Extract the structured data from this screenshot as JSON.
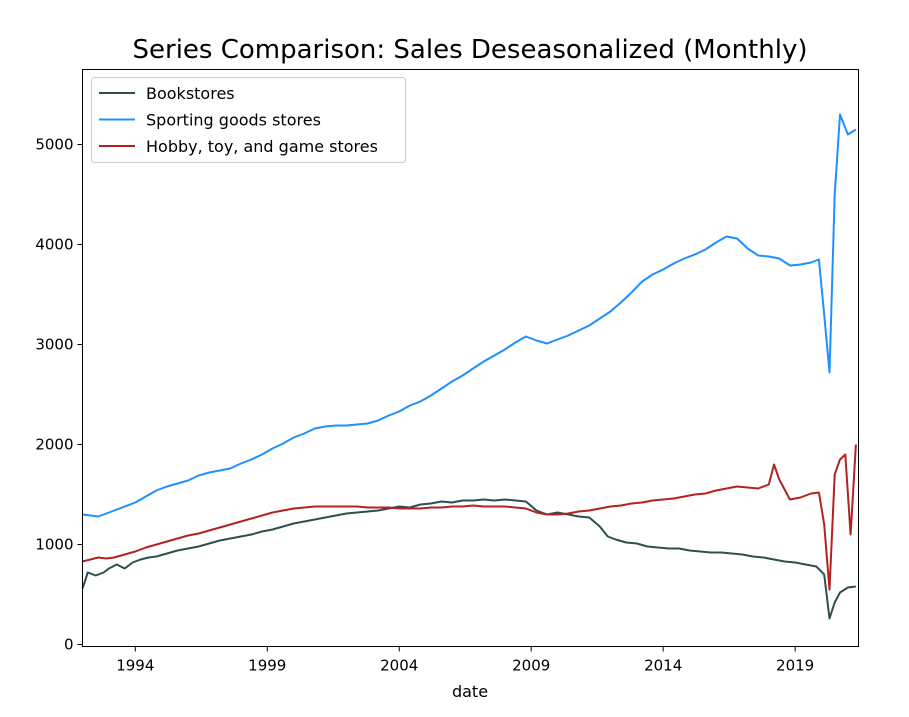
{
  "chart_data": {
    "type": "line",
    "title": "Series Comparison: Sales Deseasonalized (Monthly)",
    "xlabel": "date",
    "ylabel": "",
    "xlim": [
      1992.0,
      2021.4
    ],
    "ylim": [
      -20,
      5750
    ],
    "x_ticks": [
      1994,
      1999,
      2004,
      2009,
      2014,
      2019
    ],
    "y_ticks": [
      0,
      1000,
      2000,
      3000,
      4000,
      5000
    ],
    "legend_position": "upper-left",
    "grid": false,
    "series": [
      {
        "name": "Bookstores",
        "color": "#2f4f4f",
        "points": [
          [
            1992.0,
            560
          ],
          [
            1992.2,
            720
          ],
          [
            1992.5,
            690
          ],
          [
            1992.8,
            720
          ],
          [
            1993.0,
            760
          ],
          [
            1993.3,
            800
          ],
          [
            1993.6,
            760
          ],
          [
            1993.9,
            820
          ],
          [
            1994.2,
            850
          ],
          [
            1994.5,
            870
          ],
          [
            1994.8,
            880
          ],
          [
            1995.2,
            910
          ],
          [
            1995.6,
            940
          ],
          [
            1996.0,
            960
          ],
          [
            1996.4,
            980
          ],
          [
            1996.8,
            1010
          ],
          [
            1997.2,
            1040
          ],
          [
            1997.6,
            1060
          ],
          [
            1998.0,
            1080
          ],
          [
            1998.4,
            1100
          ],
          [
            1998.8,
            1130
          ],
          [
            1999.2,
            1150
          ],
          [
            1999.6,
            1180
          ],
          [
            2000.0,
            1210
          ],
          [
            2000.4,
            1230
          ],
          [
            2000.8,
            1250
          ],
          [
            2001.2,
            1270
          ],
          [
            2001.6,
            1290
          ],
          [
            2002.0,
            1310
          ],
          [
            2002.4,
            1320
          ],
          [
            2002.8,
            1330
          ],
          [
            2003.2,
            1340
          ],
          [
            2003.6,
            1360
          ],
          [
            2004.0,
            1380
          ],
          [
            2004.4,
            1370
          ],
          [
            2004.8,
            1400
          ],
          [
            2005.2,
            1410
          ],
          [
            2005.6,
            1430
          ],
          [
            2006.0,
            1420
          ],
          [
            2006.4,
            1440
          ],
          [
            2006.8,
            1440
          ],
          [
            2007.2,
            1450
          ],
          [
            2007.6,
            1440
          ],
          [
            2008.0,
            1450
          ],
          [
            2008.4,
            1440
          ],
          [
            2008.8,
            1430
          ],
          [
            2009.2,
            1340
          ],
          [
            2009.6,
            1300
          ],
          [
            2010.0,
            1320
          ],
          [
            2010.4,
            1300
          ],
          [
            2010.8,
            1280
          ],
          [
            2011.2,
            1270
          ],
          [
            2011.6,
            1180
          ],
          [
            2011.9,
            1080
          ],
          [
            2012.2,
            1050
          ],
          [
            2012.6,
            1020
          ],
          [
            2013.0,
            1010
          ],
          [
            2013.4,
            980
          ],
          [
            2013.8,
            970
          ],
          [
            2014.2,
            960
          ],
          [
            2014.6,
            960
          ],
          [
            2015.0,
            940
          ],
          [
            2015.4,
            930
          ],
          [
            2015.8,
            920
          ],
          [
            2016.2,
            920
          ],
          [
            2016.6,
            910
          ],
          [
            2017.0,
            900
          ],
          [
            2017.4,
            880
          ],
          [
            2017.8,
            870
          ],
          [
            2018.2,
            850
          ],
          [
            2018.6,
            830
          ],
          [
            2019.0,
            820
          ],
          [
            2019.4,
            800
          ],
          [
            2019.8,
            780
          ],
          [
            2020.1,
            700
          ],
          [
            2020.3,
            260
          ],
          [
            2020.5,
            420
          ],
          [
            2020.7,
            520
          ],
          [
            2021.0,
            570
          ],
          [
            2021.3,
            580
          ]
        ]
      },
      {
        "name": "Sporting goods stores",
        "color": "#1e90ff",
        "points": [
          [
            1992.0,
            1300
          ],
          [
            1992.3,
            1290
          ],
          [
            1992.6,
            1280
          ],
          [
            1992.9,
            1310
          ],
          [
            1993.2,
            1340
          ],
          [
            1993.6,
            1380
          ],
          [
            1994.0,
            1420
          ],
          [
            1994.4,
            1480
          ],
          [
            1994.8,
            1540
          ],
          [
            1995.2,
            1580
          ],
          [
            1995.6,
            1610
          ],
          [
            1996.0,
            1640
          ],
          [
            1996.4,
            1690
          ],
          [
            1996.8,
            1720
          ],
          [
            1997.2,
            1740
          ],
          [
            1997.6,
            1760
          ],
          [
            1998.0,
            1810
          ],
          [
            1998.4,
            1850
          ],
          [
            1998.8,
            1900
          ],
          [
            1999.2,
            1960
          ],
          [
            1999.6,
            2010
          ],
          [
            2000.0,
            2070
          ],
          [
            2000.4,
            2110
          ],
          [
            2000.8,
            2160
          ],
          [
            2001.2,
            2180
          ],
          [
            2001.6,
            2190
          ],
          [
            2002.0,
            2190
          ],
          [
            2002.4,
            2200
          ],
          [
            2002.8,
            2210
          ],
          [
            2003.2,
            2240
          ],
          [
            2003.6,
            2290
          ],
          [
            2004.0,
            2330
          ],
          [
            2004.4,
            2390
          ],
          [
            2004.8,
            2430
          ],
          [
            2005.2,
            2490
          ],
          [
            2005.6,
            2560
          ],
          [
            2006.0,
            2630
          ],
          [
            2006.4,
            2690
          ],
          [
            2006.8,
            2760
          ],
          [
            2007.2,
            2830
          ],
          [
            2007.6,
            2890
          ],
          [
            2008.0,
            2950
          ],
          [
            2008.4,
            3020
          ],
          [
            2008.8,
            3080
          ],
          [
            2009.2,
            3040
          ],
          [
            2009.6,
            3010
          ],
          [
            2010.0,
            3050
          ],
          [
            2010.4,
            3090
          ],
          [
            2010.8,
            3140
          ],
          [
            2011.2,
            3190
          ],
          [
            2011.6,
            3260
          ],
          [
            2012.0,
            3330
          ],
          [
            2012.4,
            3420
          ],
          [
            2012.8,
            3520
          ],
          [
            2013.2,
            3630
          ],
          [
            2013.6,
            3700
          ],
          [
            2014.0,
            3750
          ],
          [
            2014.4,
            3810
          ],
          [
            2014.8,
            3860
          ],
          [
            2015.2,
            3900
          ],
          [
            2015.6,
            3950
          ],
          [
            2016.0,
            4020
          ],
          [
            2016.4,
            4080
          ],
          [
            2016.8,
            4060
          ],
          [
            2017.2,
            3960
          ],
          [
            2017.6,
            3890
          ],
          [
            2018.0,
            3880
          ],
          [
            2018.4,
            3860
          ],
          [
            2018.8,
            3790
          ],
          [
            2019.2,
            3800
          ],
          [
            2019.6,
            3820
          ],
          [
            2019.9,
            3850
          ],
          [
            2020.1,
            3300
          ],
          [
            2020.3,
            2720
          ],
          [
            2020.5,
            4500
          ],
          [
            2020.7,
            5300
          ],
          [
            2021.0,
            5100
          ],
          [
            2021.3,
            5150
          ]
        ]
      },
      {
        "name": "Hobby, toy, and game stores",
        "color": "#b22222",
        "points": [
          [
            1992.0,
            830
          ],
          [
            1992.3,
            850
          ],
          [
            1992.6,
            870
          ],
          [
            1992.9,
            860
          ],
          [
            1993.2,
            870
          ],
          [
            1993.6,
            900
          ],
          [
            1994.0,
            930
          ],
          [
            1994.4,
            970
          ],
          [
            1994.8,
            1000
          ],
          [
            1995.2,
            1030
          ],
          [
            1995.6,
            1060
          ],
          [
            1996.0,
            1090
          ],
          [
            1996.4,
            1110
          ],
          [
            1996.8,
            1140
          ],
          [
            1997.2,
            1170
          ],
          [
            1997.6,
            1200
          ],
          [
            1998.0,
            1230
          ],
          [
            1998.4,
            1260
          ],
          [
            1998.8,
            1290
          ],
          [
            1999.2,
            1320
          ],
          [
            1999.6,
            1340
          ],
          [
            2000.0,
            1360
          ],
          [
            2000.4,
            1370
          ],
          [
            2000.8,
            1380
          ],
          [
            2001.2,
            1380
          ],
          [
            2001.6,
            1380
          ],
          [
            2002.0,
            1380
          ],
          [
            2002.4,
            1380
          ],
          [
            2002.8,
            1370
          ],
          [
            2003.2,
            1370
          ],
          [
            2003.6,
            1370
          ],
          [
            2004.0,
            1360
          ],
          [
            2004.4,
            1360
          ],
          [
            2004.8,
            1360
          ],
          [
            2005.2,
            1370
          ],
          [
            2005.6,
            1370
          ],
          [
            2006.0,
            1380
          ],
          [
            2006.4,
            1380
          ],
          [
            2006.8,
            1390
          ],
          [
            2007.2,
            1380
          ],
          [
            2007.6,
            1380
          ],
          [
            2008.0,
            1380
          ],
          [
            2008.4,
            1370
          ],
          [
            2008.8,
            1360
          ],
          [
            2009.2,
            1320
          ],
          [
            2009.6,
            1300
          ],
          [
            2010.0,
            1300
          ],
          [
            2010.4,
            1310
          ],
          [
            2010.8,
            1330
          ],
          [
            2011.2,
            1340
          ],
          [
            2011.6,
            1360
          ],
          [
            2012.0,
            1380
          ],
          [
            2012.4,
            1390
          ],
          [
            2012.8,
            1410
          ],
          [
            2013.2,
            1420
          ],
          [
            2013.6,
            1440
          ],
          [
            2014.0,
            1450
          ],
          [
            2014.4,
            1460
          ],
          [
            2014.8,
            1480
          ],
          [
            2015.2,
            1500
          ],
          [
            2015.6,
            1510
          ],
          [
            2016.0,
            1540
          ],
          [
            2016.4,
            1560
          ],
          [
            2016.8,
            1580
          ],
          [
            2017.2,
            1570
          ],
          [
            2017.6,
            1560
          ],
          [
            2018.0,
            1600
          ],
          [
            2018.2,
            1800
          ],
          [
            2018.4,
            1650
          ],
          [
            2018.8,
            1450
          ],
          [
            2019.2,
            1470
          ],
          [
            2019.6,
            1510
          ],
          [
            2019.9,
            1520
          ],
          [
            2020.1,
            1200
          ],
          [
            2020.3,
            550
          ],
          [
            2020.5,
            1700
          ],
          [
            2020.7,
            1850
          ],
          [
            2020.9,
            1900
          ],
          [
            2021.1,
            1100
          ],
          [
            2021.3,
            2000
          ]
        ]
      }
    ]
  }
}
